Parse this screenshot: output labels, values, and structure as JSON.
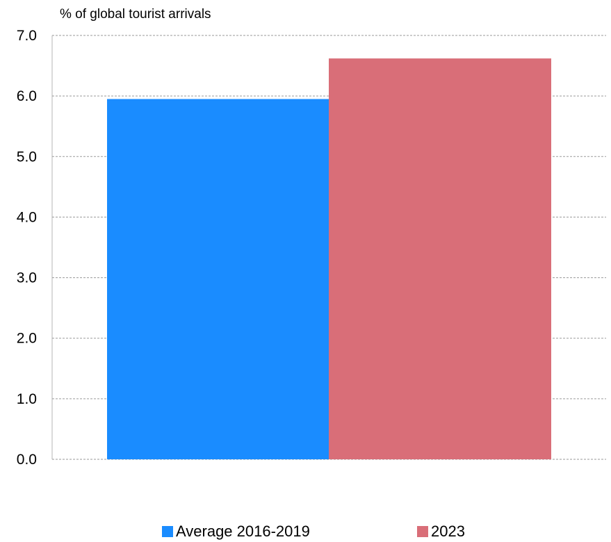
{
  "chart_data": {
    "type": "bar",
    "ylabel": "% of global tourist arrivals",
    "categories": [
      ""
    ],
    "series": [
      {
        "name": "Average 2016-2019",
        "values": [
          5.95
        ],
        "color": "#1a8cff"
      },
      {
        "name": "2023",
        "values": [
          6.62
        ],
        "color": "#d96e78"
      }
    ],
    "ylim": [
      0,
      7
    ],
    "yticks": [
      "0.0",
      "1.0",
      "2.0",
      "3.0",
      "4.0",
      "5.0",
      "6.0",
      "7.0"
    ],
    "grid": true,
    "legend": "bottom"
  }
}
